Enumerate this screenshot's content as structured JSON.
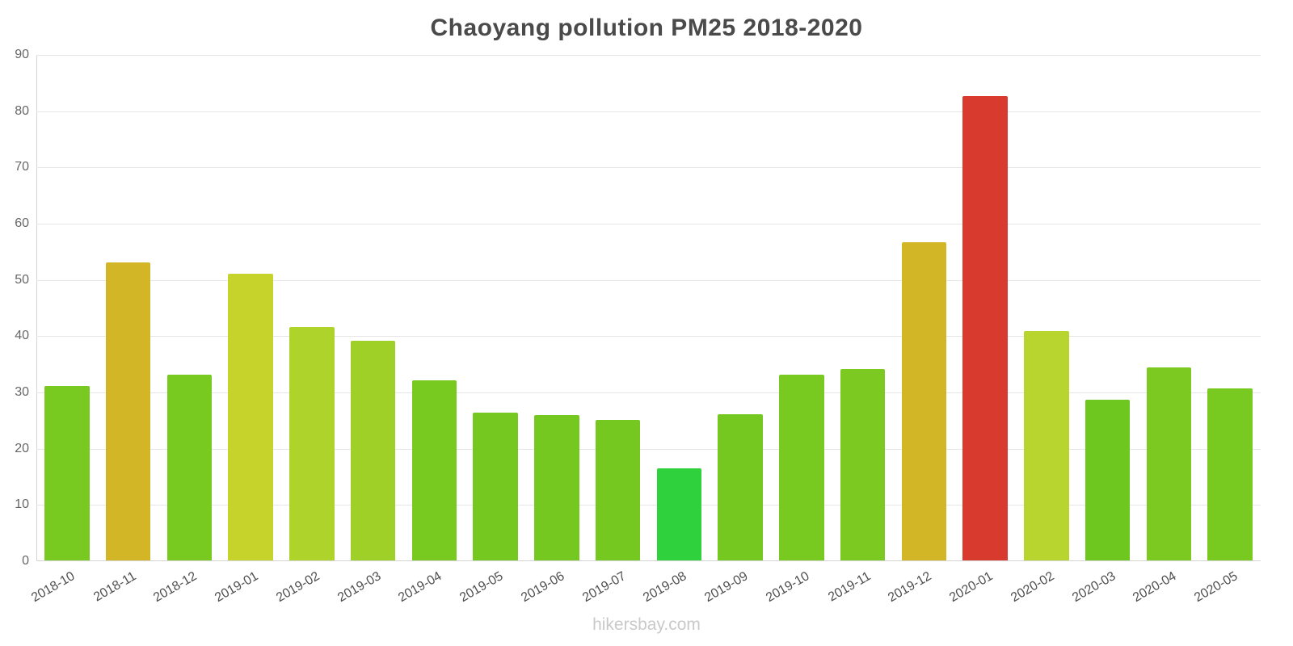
{
  "page": {
    "watermark": "hikersbay.com"
  },
  "chart_data": {
    "type": "bar",
    "title": "Chaoyang pollution PM25 2018-2020",
    "xlabel": "",
    "ylabel": "",
    "ylim": [
      0,
      90
    ],
    "yticks": [
      0,
      10,
      20,
      30,
      40,
      50,
      60,
      70,
      80,
      90
    ],
    "grid": true,
    "legend_position": "none",
    "categories": [
      "2018-10",
      "2018-11",
      "2018-12",
      "2019-01",
      "2019-02",
      "2019-03",
      "2019-04",
      "2019-05",
      "2019-06",
      "2019-07",
      "2019-08",
      "2019-09",
      "2019-10",
      "2019-11",
      "2019-12",
      "2020-01",
      "2020-02",
      "2020-03",
      "2020-04",
      "2020-05"
    ],
    "values": [
      31,
      53,
      33,
      51,
      41.5,
      39,
      32,
      26.3,
      25.8,
      25,
      16.3,
      26,
      33,
      34,
      56.5,
      82.5,
      40.8,
      28.5,
      34.3,
      30.6
    ],
    "colors": [
      "#79ca20",
      "#d2b626",
      "#79ca20",
      "#c6d32a",
      "#aed32a",
      "#9ed028",
      "#79ca20",
      "#74c81f",
      "#74c81f",
      "#74c81f",
      "#2fd13c",
      "#74c81f",
      "#79ca20",
      "#7cca21",
      "#d2b626",
      "#d93a2e",
      "#b8d42e",
      "#6ec71e",
      "#7cca21",
      "#79ca20"
    ],
    "bar_colors_legend": {
      "green": "#74c81f",
      "yellow_green": "#c6d32a",
      "gold": "#d2b626",
      "bright_green": "#2fd13c",
      "red": "#d93a2e"
    }
  }
}
